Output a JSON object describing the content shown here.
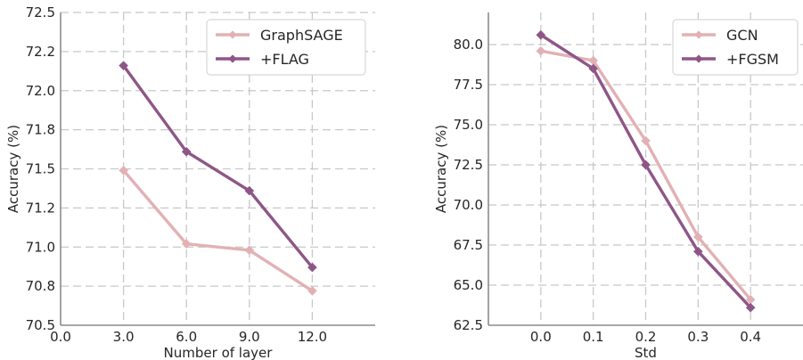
{
  "colors": {
    "base": "#e2b1b4",
    "adv": "#8e5687"
  },
  "chart_data": [
    {
      "type": "line",
      "xlabel": "Number of layer",
      "ylabel": "Accuracy (%)",
      "xlim": [
        0,
        15
      ],
      "ylim": [
        70.5,
        72.5
      ],
      "xticks": [
        0,
        3,
        6,
        9,
        12
      ],
      "xtick_labels": [
        "0.0",
        "3.0",
        "6.0",
        "9.0",
        "12.0"
      ],
      "yticks": [
        70.5,
        70.75,
        71.0,
        71.25,
        71.5,
        71.75,
        72.0,
        72.25,
        72.5
      ],
      "ytick_labels": [
        "70.5",
        "70.8",
        "71.0",
        "71.2",
        "71.5",
        "71.8",
        "72.0",
        "72.2",
        "72.5"
      ],
      "grid": true,
      "legend_position": "top-right",
      "series": [
        {
          "name": "GraphSAGE",
          "color": "#e2b1b4",
          "x": [
            3,
            6,
            9,
            12
          ],
          "y": [
            71.49,
            71.02,
            70.98,
            70.72
          ]
        },
        {
          "name": "+FLAG",
          "color": "#8e5687",
          "x": [
            3,
            6,
            9,
            12
          ],
          "y": [
            72.16,
            71.61,
            71.36,
            70.87
          ]
        }
      ]
    },
    {
      "type": "line",
      "xlabel": "Std",
      "ylabel": "Accuracy (%)",
      "xlim": [
        -0.1,
        0.5
      ],
      "ylim": [
        62.5,
        82.0
      ],
      "xticks": [
        0.0,
        0.1,
        0.2,
        0.3,
        0.4
      ],
      "xtick_labels": [
        "0.0",
        "0.1",
        "0.2",
        "0.3",
        "0.4"
      ],
      "yticks": [
        62.5,
        65.0,
        67.5,
        70.0,
        72.5,
        75.0,
        77.5,
        80.0
      ],
      "ytick_labels": [
        "62.5",
        "65.0",
        "67.5",
        "70.0",
        "72.5",
        "75.0",
        "77.5",
        "80.0"
      ],
      "grid": true,
      "legend_position": "top-right",
      "series": [
        {
          "name": "GCN",
          "color": "#e2b1b4",
          "x": [
            0.0,
            0.1,
            0.2,
            0.3,
            0.4
          ],
          "y": [
            79.6,
            79.0,
            74.0,
            68.0,
            64.1
          ]
        },
        {
          "name": "+FGSM",
          "color": "#8e5687",
          "x": [
            0.0,
            0.1,
            0.2,
            0.3,
            0.4
          ],
          "y": [
            80.6,
            78.5,
            72.5,
            67.1,
            63.6
          ]
        }
      ]
    }
  ]
}
